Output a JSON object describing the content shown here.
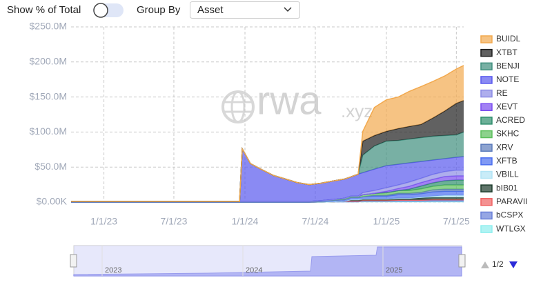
{
  "toolbar": {
    "show_percent_label": "Show % of Total",
    "group_by_label": "Group By",
    "group_by_value": "Asset"
  },
  "watermark": {
    "main": "rwa",
    "suffix": ".xyz"
  },
  "legend_page": "1/2",
  "navigator": {
    "labels": [
      "2023",
      "2024",
      "2025"
    ]
  },
  "chart_data": {
    "type": "stacked-area",
    "x": [
      "2022-10-08",
      "2023-06-01",
      "2023-12-18",
      "2023-12-25",
      "2024-01-15",
      "2024-02-15",
      "2024-03-15",
      "2024-04-15",
      "2024-05-15",
      "2024-06-15",
      "2024-07-15",
      "2024-08-15",
      "2024-09-15",
      "2024-10-01",
      "2024-10-20",
      "2024-11-01",
      "2024-12-01",
      "2025-01-01",
      "2025-02-01",
      "2025-03-01",
      "2025-04-01",
      "2025-05-01",
      "2025-06-01",
      "2025-07-01",
      "2025-07-20"
    ],
    "series": [
      {
        "name": "BUIDL",
        "color": "#f2a94e",
        "values": [
          0,
          0,
          0,
          0,
          0,
          0,
          0,
          0,
          0,
          0,
          0,
          0,
          0,
          0,
          0,
          14,
          40,
          45,
          45,
          50,
          54,
          52,
          50,
          49,
          50
        ]
      },
      {
        "name": "XTBT",
        "color": "#1e1e1e",
        "values": [
          0,
          0,
          0,
          0,
          0,
          0,
          0,
          0,
          0,
          0,
          0,
          0,
          0,
          0,
          0,
          20,
          15,
          14,
          17,
          18,
          19,
          26,
          35,
          45,
          45
        ]
      },
      {
        "name": "BENJI",
        "color": "#3f8f7e",
        "values": [
          0,
          0,
          0,
          0,
          0,
          0,
          0,
          0,
          0,
          0,
          0,
          0,
          0,
          0,
          0,
          25,
          33,
          35,
          34,
          34,
          34,
          34,
          33,
          32,
          35
        ]
      },
      {
        "name": "NOTE",
        "color": "#5858ee",
        "values": [
          0,
          0,
          0,
          75,
          54,
          45,
          37,
          32,
          27,
          24,
          25,
          26.5,
          27.5,
          27.5,
          31.5,
          28.5,
          30.5,
          31.5,
          29.5,
          27.5,
          24,
          20.5,
          18.5,
          18.5,
          19.5
        ]
      },
      {
        "name": "RE",
        "color": "#8c8ce6",
        "values": [
          0,
          0,
          0,
          0,
          0,
          0,
          0,
          0,
          0,
          0,
          0,
          0,
          0,
          0,
          0,
          3,
          4,
          5,
          5,
          6,
          6,
          7,
          7,
          8,
          8
        ]
      },
      {
        "name": "XEVT",
        "color": "#7a4cf0",
        "values": [
          0,
          0,
          0,
          0,
          0,
          0,
          0,
          0,
          0,
          0,
          0,
          0,
          0,
          0,
          0,
          0,
          0,
          2,
          3,
          4,
          5,
          5,
          6,
          6,
          6
        ]
      },
      {
        "name": "ACRED",
        "color": "#2e8e6c",
        "values": [
          0,
          0,
          0,
          0,
          0,
          0,
          0,
          0,
          0,
          0,
          0,
          0,
          0,
          0,
          0,
          0,
          0,
          0,
          0,
          2,
          4,
          5,
          6,
          7,
          7
        ]
      },
      {
        "name": "SKHC",
        "color": "#5cbf5c",
        "values": [
          1,
          1,
          1,
          1,
          1,
          1,
          1,
          1,
          1,
          1,
          1,
          1,
          2,
          2,
          2,
          3,
          3,
          4,
          4,
          4,
          5,
          5,
          6,
          6,
          6
        ]
      },
      {
        "name": "XRV",
        "color": "#5d7cbc",
        "values": [
          0,
          0,
          0,
          0,
          0,
          0,
          0,
          0,
          0,
          0,
          0,
          0,
          0,
          0,
          0,
          0,
          1,
          1,
          2,
          2,
          2,
          3,
          3,
          3,
          3
        ]
      },
      {
        "name": "XFTB",
        "color": "#4a6ef0",
        "values": [
          0,
          0,
          0,
          0,
          0,
          0,
          0,
          0,
          0,
          0,
          1,
          2,
          2,
          3,
          3,
          3,
          4,
          4,
          5,
          5,
          5,
          6,
          6,
          6,
          6
        ]
      },
      {
        "name": "VBILL",
        "color": "#b2e4f5",
        "values": [
          0,
          0,
          0,
          0,
          0,
          0,
          0,
          0,
          0,
          0,
          0,
          0,
          0,
          0,
          0,
          0,
          0,
          0,
          0,
          0,
          1,
          2,
          3,
          3,
          3
        ]
      },
      {
        "name": "bIB01",
        "color": "#1b3b2b",
        "values": [
          0,
          0,
          0,
          0,
          0,
          0,
          0,
          0,
          0,
          0,
          0,
          0,
          0,
          2,
          2,
          2,
          2,
          2,
          2.5,
          2.5,
          3,
          3,
          3,
          3,
          3
        ]
      },
      {
        "name": "PARAVII",
        "color": "#f06262",
        "values": [
          0,
          0,
          0,
          0,
          0,
          0,
          0,
          0,
          0,
          0,
          0,
          0,
          1,
          1,
          1,
          1,
          1,
          1,
          1,
          1,
          1,
          1,
          1,
          1,
          1
        ]
      },
      {
        "name": "bCSPX",
        "color": "#6a80d8",
        "values": [
          0,
          0,
          0,
          0,
          0,
          0,
          0,
          0,
          0,
          0,
          0,
          0,
          0,
          0,
          0,
          1,
          1,
          1,
          1.5,
          1.5,
          1.5,
          2,
          2,
          2,
          2
        ]
      },
      {
        "name": "WTLGX",
        "color": "#8eeeee",
        "values": [
          0,
          0,
          0,
          0,
          0,
          0,
          0,
          0,
          0,
          0,
          0,
          0.5,
          0.5,
          0.5,
          0.5,
          0.5,
          0.5,
          0.5,
          0.5,
          0.5,
          0.5,
          0.5,
          0.5,
          0.5,
          0.5
        ]
      }
    ],
    "xlim": [
      "2022-10-08",
      "2025-07-20"
    ],
    "xticks": [
      {
        "value": "2023-01-01",
        "label": "1/1/23"
      },
      {
        "value": "2023-07-01",
        "label": "7/1/23"
      },
      {
        "value": "2024-01-01",
        "label": "1/1/24"
      },
      {
        "value": "2024-07-01",
        "label": "7/1/24"
      },
      {
        "value": "2025-01-01",
        "label": "1/1/25"
      },
      {
        "value": "2025-07-01",
        "label": "7/1/25"
      }
    ],
    "ylim": [
      0,
      250
    ],
    "yticks": [
      {
        "value": 0,
        "label": "$0.00K"
      },
      {
        "value": 50,
        "label": "$50.0M"
      },
      {
        "value": 100,
        "label": "$100.0M"
      },
      {
        "value": 150,
        "label": "$150.0M"
      },
      {
        "value": 200,
        "label": "$200.0M"
      },
      {
        "value": 250,
        "label": "$250.0M"
      }
    ],
    "grid": true,
    "legend": "right"
  }
}
